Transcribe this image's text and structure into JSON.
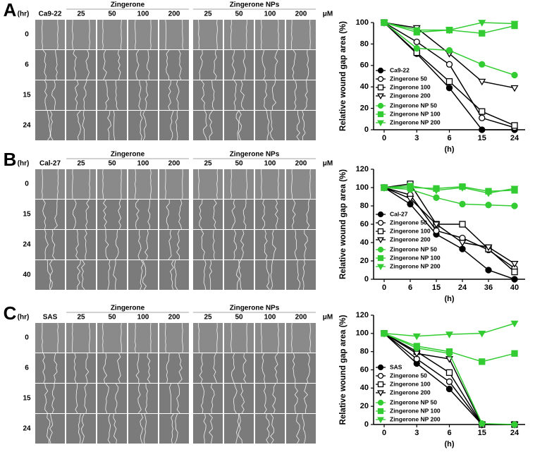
{
  "panels": [
    {
      "letter": "A",
      "time_unit": "(hr)",
      "cell_line": "Ca9-22",
      "group1": "Zingerone",
      "group2": "Zingerone NPs",
      "concentrations1": [
        "25",
        "50",
        "100",
        "200"
      ],
      "concentrations2": [
        "25",
        "50",
        "100",
        "200"
      ],
      "conc_unit": "μM",
      "times": [
        "0",
        "6",
        "15",
        "24"
      ]
    },
    {
      "letter": "B",
      "time_unit": "(hr)",
      "cell_line": "Cal-27",
      "group1": "Zingerone",
      "group2": "Zingerone NPs",
      "concentrations1": [
        "25",
        "50",
        "100",
        "200"
      ],
      "concentrations2": [
        "25",
        "50",
        "100",
        "200"
      ],
      "conc_unit": "μM",
      "times": [
        "0",
        "15",
        "24",
        "40"
      ]
    },
    {
      "letter": "C",
      "time_unit": "(hr)",
      "cell_line": "SAS",
      "group1": "Zingerone",
      "group2": "Zingerone NPs",
      "concentrations1": [
        "25",
        "50",
        "100",
        "200"
      ],
      "concentrations2": [
        "25",
        "50",
        "100",
        "200"
      ],
      "conc_unit": "μM",
      "times": [
        "0",
        "6",
        "15",
        "24"
      ]
    }
  ],
  "chart_data": [
    {
      "type": "line",
      "x_label": "(h)",
      "y_label": "Relative wound gap area (%)",
      "categories": [
        "0",
        "3",
        "6",
        "15",
        "24"
      ],
      "ylim": [
        0,
        100
      ],
      "yticks": [
        0,
        20,
        40,
        60,
        80,
        100
      ],
      "series": [
        {
          "name": "Ca9-22",
          "color": "#000000",
          "marker": "circle",
          "values": [
            100,
            71,
            39,
            0,
            0
          ]
        },
        {
          "name": "Zingerone 50",
          "color": "#000000",
          "marker": "open-circle",
          "values": [
            100,
            82,
            61,
            11,
            2
          ]
        },
        {
          "name": "Zingerone 100",
          "color": "#000000",
          "marker": "open-square",
          "values": [
            100,
            72,
            45,
            17,
            4
          ]
        },
        {
          "name": "Zingerone 200",
          "color": "#000000",
          "marker": "open-triangle",
          "values": [
            100,
            95,
            71,
            45,
            39
          ]
        },
        {
          "name": "Zingerone NP 50",
          "color": "#33cc33",
          "marker": "circle",
          "values": [
            100,
            76,
            74,
            61,
            51
          ]
        },
        {
          "name": "Zingerone NP 100",
          "color": "#33cc33",
          "marker": "square",
          "values": [
            100,
            91,
            93,
            90,
            97
          ]
        },
        {
          "name": "Zingerone NP 200",
          "color": "#33cc33",
          "marker": "triangle",
          "values": [
            100,
            93,
            93,
            100,
            99
          ]
        }
      ]
    },
    {
      "type": "line",
      "x_label": "(h)",
      "y_label": "Relative wound gap area (%)",
      "categories": [
        "0",
        "6",
        "15",
        "24",
        "36",
        "40"
      ],
      "ylim": [
        0,
        120
      ],
      "yticks": [
        0,
        20,
        40,
        60,
        80,
        100,
        120
      ],
      "series": [
        {
          "name": "Cal-27",
          "color": "#000000",
          "marker": "circle",
          "values": [
            100,
            82,
            49,
            33,
            10,
            0
          ]
        },
        {
          "name": "Zingerone 50",
          "color": "#000000",
          "marker": "open-circle",
          "values": [
            100,
            92,
            53,
            45,
            32,
            12
          ]
        },
        {
          "name": "Zingerone 100",
          "color": "#000000",
          "marker": "open-square",
          "values": [
            100,
            104,
            60,
            60,
            33,
            8
          ]
        },
        {
          "name": "Zingerone 200",
          "color": "#000000",
          "marker": "open-triangle",
          "values": [
            100,
            88,
            60,
            40,
            35,
            17
          ]
        },
        {
          "name": "Zingerone NP 50",
          "color": "#33cc33",
          "marker": "circle",
          "values": [
            100,
            98,
            89,
            82,
            81,
            80
          ]
        },
        {
          "name": "Zingerone NP 100",
          "color": "#33cc33",
          "marker": "square",
          "values": [
            100,
            100,
            99,
            101,
            96,
            97
          ]
        },
        {
          "name": "Zingerone NP 200",
          "color": "#33cc33",
          "marker": "triangle",
          "values": [
            100,
            102,
            97,
            100,
            94,
            99
          ]
        }
      ]
    },
    {
      "type": "line",
      "x_label": "(h)",
      "y_label": "Relative wound gap area (%)",
      "categories": [
        "0",
        "3",
        "6",
        "15",
        "24"
      ],
      "ylim": [
        0,
        120
      ],
      "yticks": [
        0,
        20,
        40,
        60,
        80,
        100,
        120
      ],
      "series": [
        {
          "name": "SAS",
          "color": "#000000",
          "marker": "circle",
          "values": [
            100,
            67,
            39,
            0,
            0
          ]
        },
        {
          "name": "Zingerone 50",
          "color": "#000000",
          "marker": "open-circle",
          "values": [
            100,
            72,
            47,
            0,
            0
          ]
        },
        {
          "name": "Zingerone 100",
          "color": "#000000",
          "marker": "open-square",
          "values": [
            100,
            80,
            57,
            0,
            0
          ]
        },
        {
          "name": "Zingerone 200",
          "color": "#000000",
          "marker": "open-triangle",
          "values": [
            100,
            78,
            72,
            0,
            0
          ]
        },
        {
          "name": "Zingerone NP 50",
          "color": "#33cc33",
          "marker": "circle",
          "values": [
            100,
            84,
            78,
            1,
            0
          ]
        },
        {
          "name": "Zingerone NP 100",
          "color": "#33cc33",
          "marker": "square",
          "values": [
            100,
            86,
            80,
            69,
            78
          ]
        },
        {
          "name": "Zingerone NP 200",
          "color": "#33cc33",
          "marker": "triangle",
          "values": [
            100,
            97,
            99,
            100,
            111
          ]
        }
      ]
    }
  ]
}
